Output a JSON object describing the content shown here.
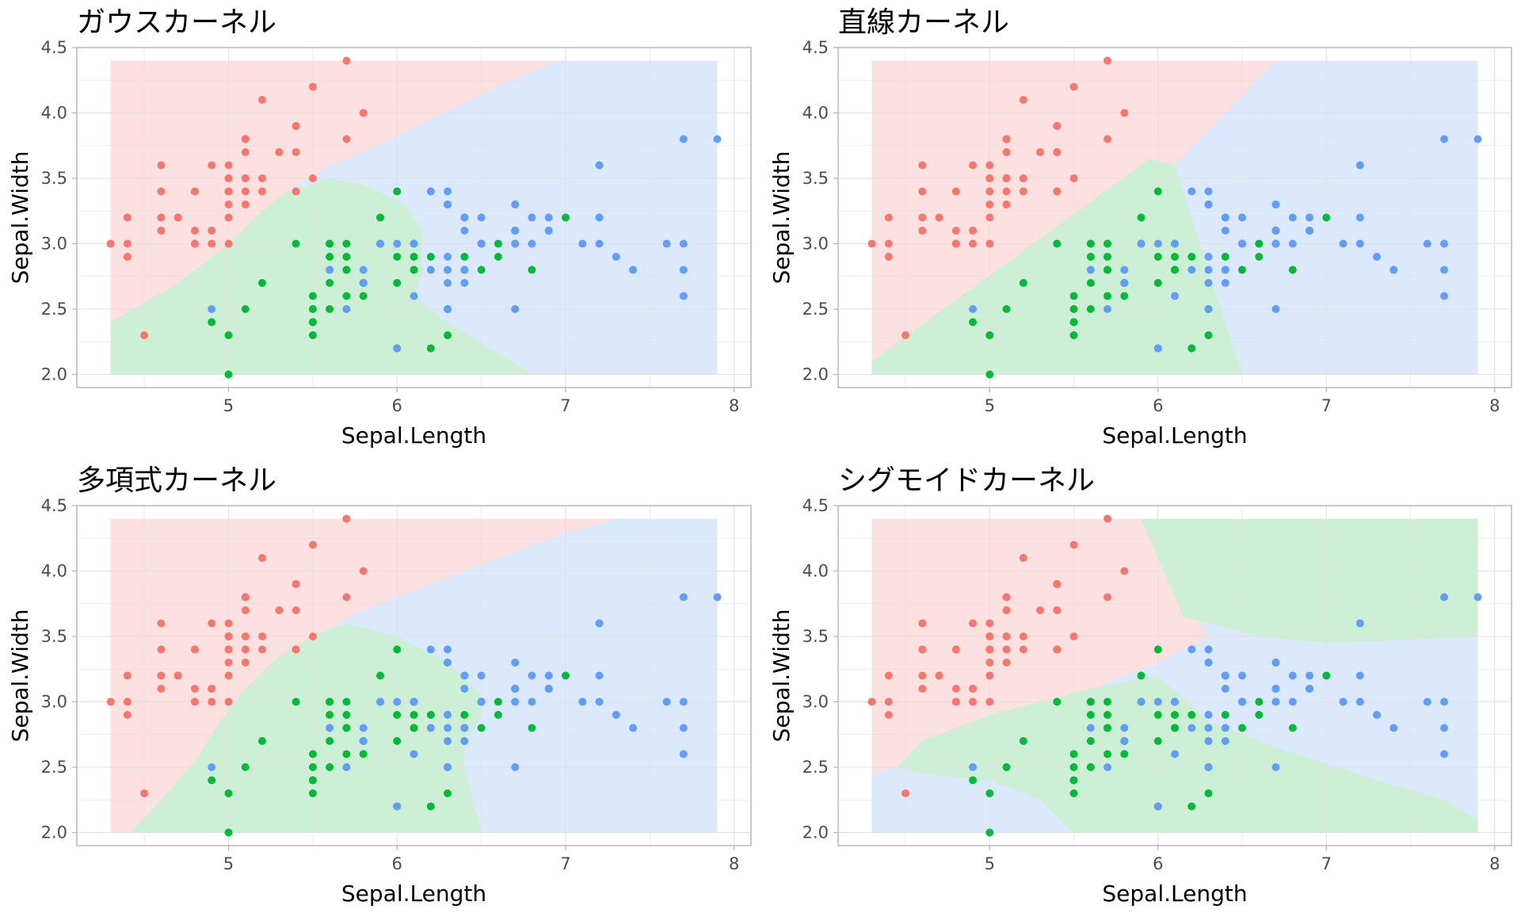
{
  "colors": {
    "setosa_point": "#F8766D",
    "versicolor_point": "#00BA38",
    "virginica_point": "#619CFF",
    "setosa_region": "#FDE0E0",
    "versicolor_region": "#CCEFD6",
    "virginica_region": "#DCE8FB",
    "grid": "#E1E1E1",
    "panel_border": "#B3B3B3"
  },
  "chart_data": [
    {
      "type": "scatter",
      "title": "ガウスカーネル",
      "xlabel": "Sepal.Length",
      "ylabel": "Sepal.Width",
      "xlim": [
        4.1,
        8.1
      ],
      "ylim": [
        1.9,
        4.5
      ],
      "xticks": [
        5,
        6,
        7,
        8
      ],
      "xtick_labels": [
        "5",
        "6",
        "7",
        "8"
      ],
      "yticks": [
        2.0,
        2.5,
        3.0,
        3.5,
        4.0,
        4.5
      ],
      "ytick_labels": [
        "2.0",
        "2.5",
        "3.0",
        "3.5",
        "4.0",
        "4.5"
      ],
      "grid": true,
      "legend": "none",
      "regions": [
        {
          "class": "setosa",
          "polygon": [
            [
              4.3,
              4.4
            ],
            [
              6.95,
              4.4
            ],
            [
              6.6,
              4.2
            ],
            [
              6.2,
              3.95
            ],
            [
              5.8,
              3.7
            ],
            [
              5.6,
              3.6
            ],
            [
              5.35,
              3.4
            ],
            [
              5.2,
              3.25
            ],
            [
              5.0,
              3.0
            ],
            [
              4.7,
              2.7
            ],
            [
              4.3,
              2.4
            ]
          ]
        },
        {
          "class": "versicolor",
          "polygon": [
            [
              4.3,
              2.4
            ],
            [
              4.7,
              2.7
            ],
            [
              5.0,
              3.0
            ],
            [
              5.2,
              3.25
            ],
            [
              5.35,
              3.4
            ],
            [
              5.6,
              3.5
            ],
            [
              5.8,
              3.45
            ],
            [
              6.05,
              3.3
            ],
            [
              6.15,
              3.1
            ],
            [
              6.15,
              2.8
            ],
            [
              6.1,
              2.6
            ],
            [
              6.3,
              2.4
            ],
            [
              6.55,
              2.2
            ],
            [
              6.8,
              2.0
            ],
            [
              4.3,
              2.0
            ]
          ]
        }
      ],
      "background_class": "virginica"
    },
    {
      "type": "scatter",
      "title": "直線カーネル",
      "xlabel": "Sepal.Length",
      "ylabel": "Sepal.Width",
      "xlim": [
        4.1,
        8.1
      ],
      "ylim": [
        1.9,
        4.5
      ],
      "xticks": [
        5,
        6,
        7,
        8
      ],
      "xtick_labels": [
        "5",
        "6",
        "7",
        "8"
      ],
      "yticks": [
        2.0,
        2.5,
        3.0,
        3.5,
        4.0,
        4.5
      ],
      "ytick_labels": [
        "2.0",
        "2.5",
        "3.0",
        "3.5",
        "4.0",
        "4.5"
      ],
      "grid": true,
      "legend": "none",
      "regions": [
        {
          "class": "setosa",
          "polygon": [
            [
              4.3,
              4.4
            ],
            [
              6.7,
              4.4
            ],
            [
              6.1,
              3.6
            ],
            [
              5.95,
              3.65
            ],
            [
              4.3,
              2.1
            ]
          ]
        },
        {
          "class": "versicolor",
          "polygon": [
            [
              4.3,
              2.1
            ],
            [
              5.95,
              3.65
            ],
            [
              6.1,
              3.6
            ],
            [
              6.5,
              2.0
            ],
            [
              4.3,
              2.0
            ]
          ]
        }
      ],
      "background_class": "virginica"
    },
    {
      "type": "scatter",
      "title": "多項式カーネル",
      "xlabel": "Sepal.Length",
      "ylabel": "Sepal.Width",
      "xlim": [
        4.1,
        8.1
      ],
      "ylim": [
        1.9,
        4.5
      ],
      "xticks": [
        5,
        6,
        7,
        8
      ],
      "xtick_labels": [
        "5",
        "6",
        "7",
        "8"
      ],
      "yticks": [
        2.0,
        2.5,
        3.0,
        3.5,
        4.0,
        4.5
      ],
      "ytick_labels": [
        "2.0",
        "2.5",
        "3.0",
        "3.5",
        "4.0",
        "4.5"
      ],
      "grid": true,
      "legend": "none",
      "regions": [
        {
          "class": "setosa",
          "polygon": [
            [
              4.3,
              4.4
            ],
            [
              7.3,
              4.4
            ],
            [
              6.9,
              4.25
            ],
            [
              6.5,
              4.05
            ],
            [
              6.1,
              3.85
            ],
            [
              5.8,
              3.7
            ],
            [
              5.5,
              3.5
            ],
            [
              5.3,
              3.35
            ],
            [
              5.1,
              3.1
            ],
            [
              4.95,
              2.85
            ],
            [
              4.8,
              2.55
            ],
            [
              4.6,
              2.25
            ],
            [
              4.42,
              2.0
            ],
            [
              4.3,
              2.0
            ]
          ]
        },
        {
          "class": "versicolor",
          "polygon": [
            [
              4.42,
              2.0
            ],
            [
              4.6,
              2.25
            ],
            [
              4.8,
              2.55
            ],
            [
              4.95,
              2.85
            ],
            [
              5.1,
              3.1
            ],
            [
              5.3,
              3.35
            ],
            [
              5.5,
              3.5
            ],
            [
              5.7,
              3.6
            ],
            [
              6.0,
              3.5
            ],
            [
              6.3,
              3.3
            ],
            [
              6.5,
              3.05
            ],
            [
              6.5,
              2.9
            ],
            [
              6.4,
              2.7
            ],
            [
              6.4,
              2.5
            ],
            [
              6.5,
              2.0
            ]
          ]
        }
      ],
      "background_class": "virginica"
    },
    {
      "type": "scatter",
      "title": "シグモイドカーネル",
      "xlabel": "Sepal.Length",
      "ylabel": "Sepal.Width",
      "xlim": [
        4.1,
        8.1
      ],
      "ylim": [
        1.9,
        4.5
      ],
      "xticks": [
        5,
        6,
        7,
        8
      ],
      "xtick_labels": [
        "5",
        "6",
        "7",
        "8"
      ],
      "yticks": [
        2.0,
        2.5,
        3.0,
        3.5,
        4.0,
        4.5
      ],
      "ytick_labels": [
        "2.0",
        "2.5",
        "3.0",
        "3.5",
        "4.0",
        "4.5"
      ],
      "grid": true,
      "legend": "none",
      "regions": [
        {
          "class": "setosa",
          "polygon": [
            [
              4.3,
              4.4
            ],
            [
              5.9,
              4.4
            ],
            [
              6.0,
              4.1
            ],
            [
              6.15,
              3.8
            ],
            [
              6.3,
              3.5
            ],
            [
              6.0,
              3.3
            ],
            [
              5.6,
              3.1
            ],
            [
              5.0,
              2.9
            ],
            [
              4.6,
              2.7
            ],
            [
              4.45,
              2.5
            ],
            [
              4.3,
              2.45
            ]
          ]
        },
        {
          "class": "versicolor",
          "polygon": [
            [
              4.45,
              2.5
            ],
            [
              4.6,
              2.7
            ],
            [
              5.0,
              2.9
            ],
            [
              5.6,
              3.1
            ],
            [
              6.0,
              3.2
            ],
            [
              6.3,
              2.85
            ],
            [
              6.7,
              2.65
            ],
            [
              7.3,
              2.4
            ],
            [
              7.7,
              2.25
            ],
            [
              7.9,
              2.1
            ],
            [
              7.9,
              2.0
            ],
            [
              5.5,
              2.0
            ],
            [
              5.3,
              2.25
            ],
            [
              5.0,
              2.4
            ],
            [
              4.6,
              2.45
            ]
          ]
        },
        {
          "class": "versicolor",
          "polygon": [
            [
              5.9,
              4.4
            ],
            [
              7.9,
              4.4
            ],
            [
              7.9,
              3.5
            ],
            [
              7.4,
              3.47
            ],
            [
              7.0,
              3.45
            ],
            [
              6.6,
              3.5
            ],
            [
              6.3,
              3.6
            ],
            [
              6.15,
              3.65
            ],
            [
              6.0,
              4.1
            ]
          ]
        }
      ],
      "background_class": "virginica"
    }
  ],
  "iris_points": {
    "sepal_length": [
      5.1,
      4.9,
      4.7,
      4.6,
      5.0,
      5.4,
      4.6,
      5.0,
      4.4,
      4.9,
      5.4,
      4.8,
      4.8,
      4.3,
      5.8,
      5.7,
      5.4,
      5.1,
      5.7,
      5.1,
      5.4,
      5.1,
      4.6,
      5.1,
      4.8,
      5.0,
      5.0,
      5.2,
      5.2,
      4.7,
      4.8,
      5.4,
      5.2,
      5.5,
      4.9,
      5.0,
      5.5,
      4.9,
      4.4,
      5.1,
      5.0,
      4.5,
      4.4,
      5.0,
      5.1,
      4.8,
      5.1,
      4.6,
      5.3,
      5.0,
      7.0,
      6.4,
      6.9,
      5.5,
      6.5,
      5.7,
      6.3,
      4.9,
      6.6,
      5.2,
      5.0,
      5.9,
      6.0,
      6.1,
      5.6,
      6.7,
      5.6,
      5.8,
      6.2,
      5.6,
      5.9,
      6.1,
      6.3,
      6.1,
      6.4,
      6.6,
      6.8,
      6.7,
      6.0,
      5.7,
      5.5,
      5.5,
      5.8,
      6.0,
      5.4,
      6.0,
      6.7,
      6.3,
      5.6,
      5.5,
      5.5,
      6.1,
      5.8,
      5.0,
      5.6,
      5.7,
      5.7,
      6.2,
      5.1,
      5.7,
      6.3,
      5.8,
      7.1,
      6.3,
      6.5,
      7.6,
      4.9,
      7.3,
      6.7,
      7.2,
      6.5,
      6.4,
      6.8,
      5.7,
      5.8,
      6.4,
      6.5,
      7.7,
      7.7,
      6.0,
      6.9,
      5.6,
      7.7,
      6.3,
      6.7,
      7.2,
      6.2,
      6.1,
      6.4,
      7.2,
      7.4,
      7.9,
      6.4,
      6.3,
      6.1,
      7.7,
      6.3,
      6.4,
      6.0,
      6.9,
      6.7,
      6.9,
      5.8,
      6.8,
      6.7,
      6.7,
      6.3,
      6.5,
      6.2,
      5.9
    ],
    "sepal_width": [
      3.5,
      3.0,
      3.2,
      3.1,
      3.6,
      3.9,
      3.4,
      3.4,
      2.9,
      3.1,
      3.7,
      3.4,
      3.0,
      3.0,
      4.0,
      4.4,
      3.9,
      3.5,
      3.8,
      3.8,
      3.4,
      3.7,
      3.6,
      3.3,
      3.4,
      3.0,
      3.4,
      3.5,
      3.4,
      3.2,
      3.1,
      3.4,
      4.1,
      4.2,
      3.1,
      3.2,
      3.5,
      3.6,
      3.0,
      3.4,
      3.5,
      2.3,
      3.2,
      3.5,
      3.8,
      3.0,
      3.8,
      3.2,
      3.7,
      3.3,
      3.2,
      3.2,
      3.1,
      2.3,
      2.8,
      2.8,
      3.3,
      2.4,
      2.9,
      2.7,
      2.0,
      3.0,
      2.2,
      2.9,
      2.9,
      3.1,
      3.0,
      2.7,
      2.2,
      2.5,
      3.2,
      2.8,
      2.5,
      2.8,
      2.9,
      3.0,
      2.8,
      3.0,
      2.9,
      2.6,
      2.4,
      2.4,
      2.7,
      2.7,
      3.0,
      3.4,
      3.1,
      2.3,
      3.0,
      2.5,
      2.6,
      3.0,
      2.6,
      2.3,
      2.7,
      3.0,
      2.9,
      2.9,
      2.5,
      2.8,
      3.3,
      2.7,
      3.0,
      2.9,
      3.0,
      3.0,
      2.5,
      2.9,
      2.5,
      3.6,
      3.2,
      2.7,
      3.0,
      2.5,
      2.8,
      3.2,
      3.0,
      3.8,
      2.6,
      2.2,
      3.2,
      2.8,
      2.8,
      2.7,
      3.3,
      3.2,
      2.8,
      3.0,
      2.8,
      3.0,
      2.8,
      3.8,
      2.8,
      2.8,
      2.6,
      3.0,
      3.4,
      3.1,
      3.0,
      3.1,
      3.1,
      3.1,
      2.7,
      3.2,
      3.3,
      3.0,
      2.5,
      3.0,
      3.4,
      3.0
    ],
    "class_counts": [
      50,
      50,
      50
    ]
  }
}
